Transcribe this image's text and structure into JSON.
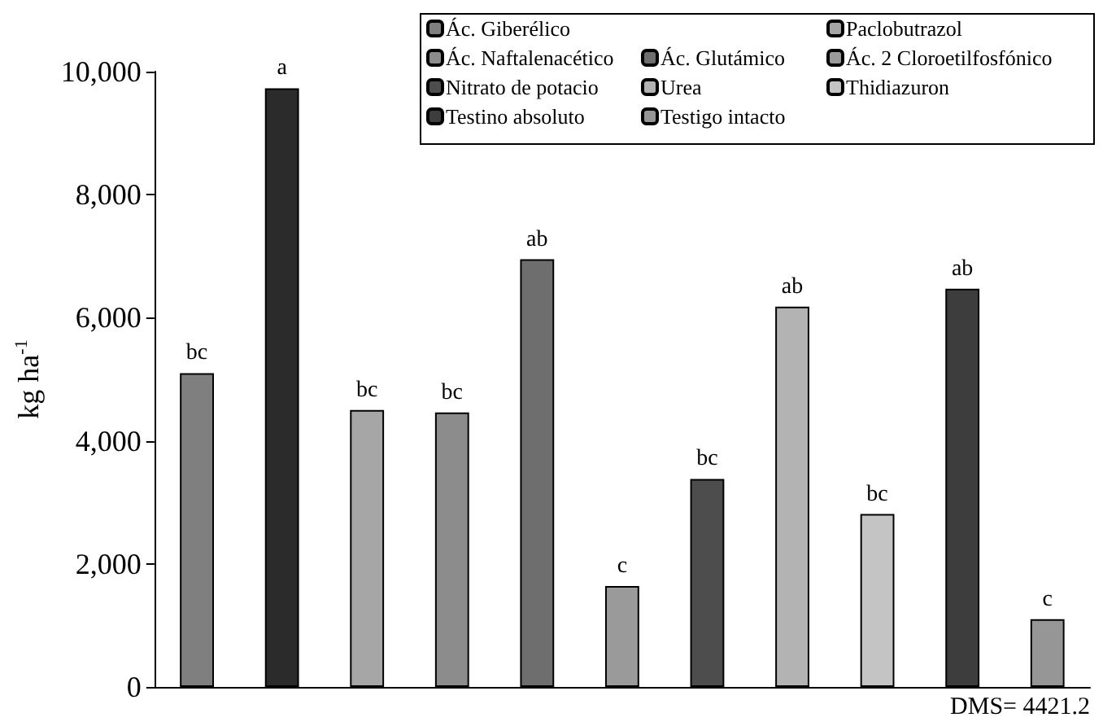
{
  "chart_data": {
    "type": "bar",
    "ylabel": "kg ha$^{-1}$",
    "stacked": true,
    "categories": [
      null,
      null,
      null,
      null,
      null,
      null,
      null,
      null,
      null,
      null,
      null
    ],
    "series": [
      {
        "name": "Ác. Giberélico",
        "color": "#7f7f7f",
        "values": [
          5100,
          null,
          null,
          null,
          null,
          null,
          null,
          null,
          null,
          null,
          null
        ],
        "value_labels": [
          "bc",
          null,
          null,
          null,
          null,
          null,
          null,
          null,
          null,
          null,
          null
        ]
      },
      {
        "color": "#2b2b2b",
        "values": [
          null,
          9730,
          null,
          null,
          null,
          null,
          null,
          null,
          null,
          null,
          null
        ],
        "value_labels": [
          null,
          "a",
          null,
          null,
          null,
          null,
          null,
          null,
          null,
          null,
          null
        ]
      },
      {
        "name": "Paclobutrazol",
        "color": "#a6a6a6",
        "values": [
          null,
          null,
          4500,
          null,
          null,
          null,
          null,
          null,
          null,
          null,
          null
        ],
        "value_labels": [
          null,
          null,
          "bc",
          null,
          null,
          null,
          null,
          null,
          null,
          null,
          null
        ]
      },
      {
        "name": "Ác. Naftalenacético",
        "color": "#8c8c8c",
        "values": [
          null,
          null,
          null,
          4460,
          null,
          null,
          null,
          null,
          null,
          null,
          null
        ],
        "value_labels": [
          null,
          null,
          null,
          "bc",
          null,
          null,
          null,
          null,
          null,
          null,
          null
        ]
      },
      {
        "name": "Ác. Glutámico",
        "color": "#6e6e6e",
        "values": [
          null,
          null,
          null,
          null,
          6950,
          null,
          null,
          null,
          null,
          null,
          null
        ],
        "value_labels": [
          null,
          null,
          null,
          null,
          "ab",
          null,
          null,
          null,
          null,
          null,
          null
        ]
      },
      {
        "name": "Ác. 2 Cloroetilfosfónico",
        "color": "#9a9a9a",
        "values": [
          null,
          null,
          null,
          null,
          null,
          1640,
          null,
          null,
          null,
          null,
          null
        ],
        "value_labels": [
          null,
          null,
          null,
          null,
          null,
          "c",
          null,
          null,
          null,
          null,
          null
        ]
      },
      {
        "name": "Nitrato de potacio",
        "color": "#4d4d4d",
        "values": [
          null,
          null,
          null,
          null,
          null,
          null,
          3380,
          null,
          null,
          null,
          null
        ],
        "value_labels": [
          null,
          null,
          null,
          null,
          null,
          null,
          "bc",
          null,
          null,
          null,
          null
        ]
      },
      {
        "name": "Urea",
        "color": "#b3b3b3",
        "values": [
          null,
          null,
          null,
          null,
          null,
          null,
          null,
          6180,
          null,
          null,
          null
        ],
        "value_labels": [
          null,
          null,
          null,
          null,
          null,
          null,
          null,
          "ab",
          null,
          null,
          null
        ]
      },
      {
        "name": "Thidiazuron",
        "color": "#c4c4c4",
        "values": [
          null,
          null,
          null,
          null,
          null,
          null,
          null,
          null,
          2810,
          null,
          null
        ],
        "value_labels": [
          null,
          null,
          null,
          null,
          null,
          null,
          null,
          null,
          "bc",
          null,
          null
        ]
      },
      {
        "name": "Testino absoluto",
        "color": "#3d3d3d",
        "values": [
          null,
          null,
          null,
          null,
          null,
          null,
          null,
          null,
          null,
          6470,
          null
        ],
        "value_labels": [
          null,
          null,
          null,
          null,
          null,
          null,
          null,
          null,
          null,
          "ab",
          null
        ]
      },
      {
        "name": "Testigo intacto",
        "color": "#969696",
        "values": [
          null,
          null,
          null,
          null,
          null,
          null,
          null,
          null,
          null,
          null,
          1100
        ],
        "value_labels": [
          null,
          null,
          null,
          null,
          null,
          null,
          null,
          null,
          null,
          null,
          "c"
        ]
      }
    ],
    "ylim": [
      0,
      10000
    ],
    "yticks": [
      {
        "value": 0,
        "label": "0"
      },
      {
        "value": 2000,
        "label": "2,000"
      },
      {
        "value": 4000,
        "label": "4,000"
      },
      {
        "value": 6000,
        "label": "6,000"
      },
      {
        "value": 8000,
        "label": "8,000"
      },
      {
        "value": 10000,
        "label": "10,000"
      }
    ],
    "tick_labels": "y",
    "grid": false,
    "legend": "top right",
    "annotations": [
      "DMS= 4421.2"
    ]
  }
}
